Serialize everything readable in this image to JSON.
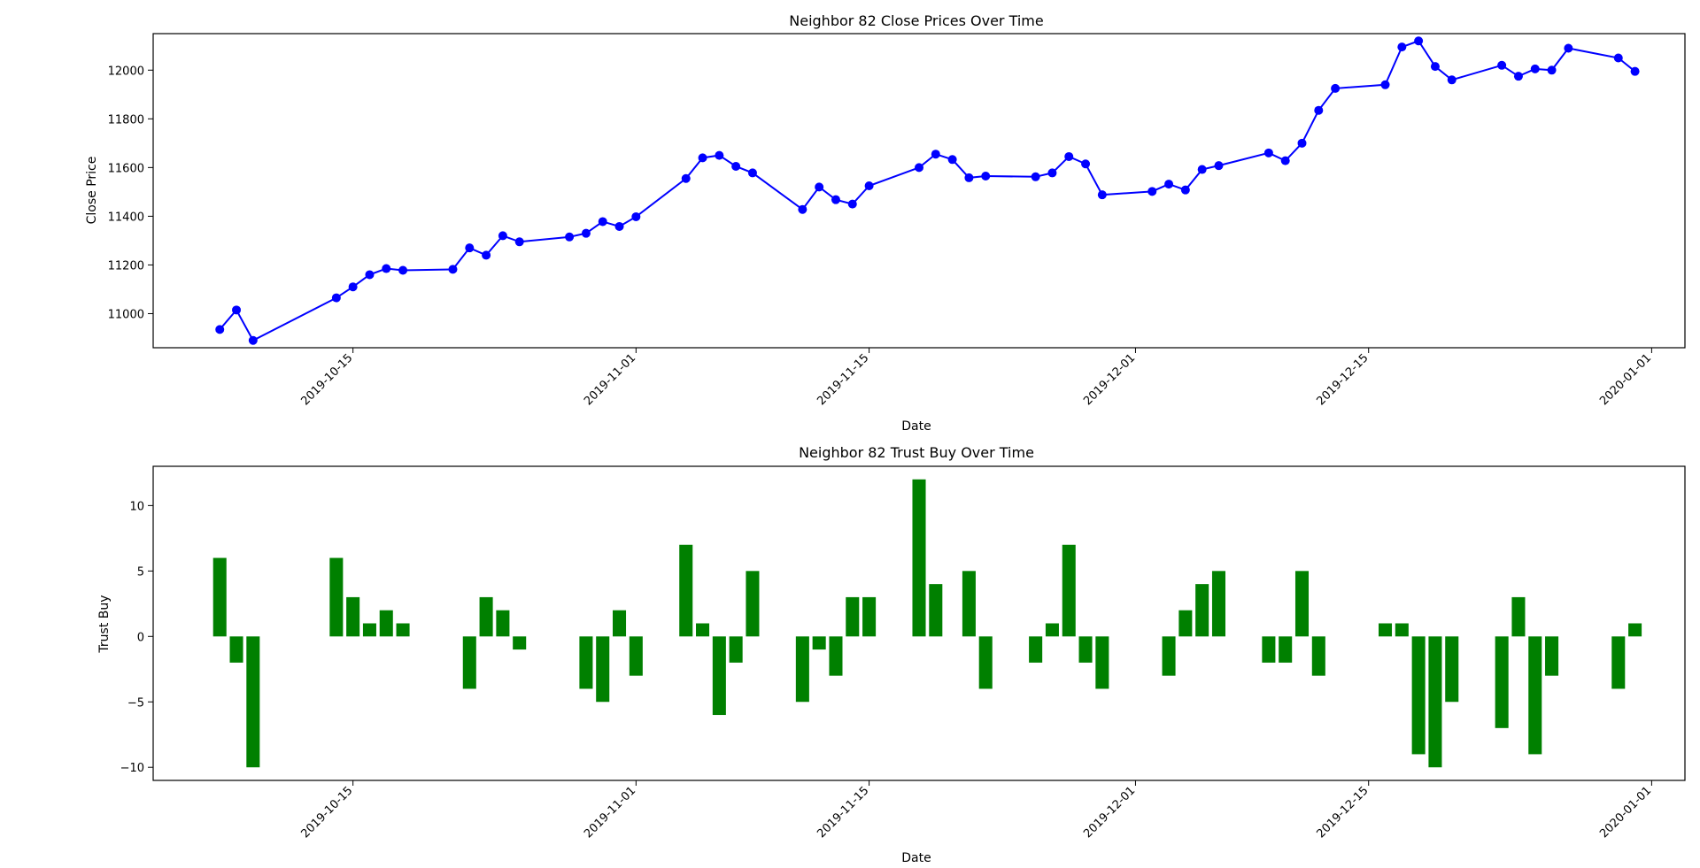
{
  "chart_data": [
    {
      "type": "line",
      "title": "Neighbor 82 Close Prices Over Time",
      "xlabel": "Date",
      "ylabel": "Close Price",
      "xlim": [
        "2019-10-03",
        "2020-01-03"
      ],
      "ylim": [
        10860,
        12150
      ],
      "xticks": [
        "2019-10-15",
        "2019-11-01",
        "2019-11-15",
        "2019-12-01",
        "2019-12-15",
        "2020-01-01"
      ],
      "yticks": [
        11000,
        11200,
        11400,
        11600,
        11800,
        12000
      ],
      "grid": false,
      "color": "#0000ff",
      "marker": "circle",
      "series": [
        {
          "x": [
            "2019-10-07",
            "2019-10-08",
            "2019-10-09",
            "2019-10-14",
            "2019-10-15",
            "2019-10-16",
            "2019-10-17",
            "2019-10-18",
            "2019-10-21",
            "2019-10-22",
            "2019-10-23",
            "2019-10-24",
            "2019-10-25",
            "2019-10-28",
            "2019-10-29",
            "2019-10-30",
            "2019-10-31",
            "2019-11-01",
            "2019-11-04",
            "2019-11-05",
            "2019-11-06",
            "2019-11-07",
            "2019-11-08",
            "2019-11-11",
            "2019-11-12",
            "2019-11-13",
            "2019-11-14",
            "2019-11-15",
            "2019-11-18",
            "2019-11-19",
            "2019-11-20",
            "2019-11-21",
            "2019-11-22",
            "2019-11-25",
            "2019-11-26",
            "2019-11-27",
            "2019-11-28",
            "2019-11-29",
            "2019-12-02",
            "2019-12-03",
            "2019-12-04",
            "2019-12-05",
            "2019-12-06",
            "2019-12-09",
            "2019-12-10",
            "2019-12-11",
            "2019-12-12",
            "2019-12-13",
            "2019-12-16",
            "2019-12-17",
            "2019-12-18",
            "2019-12-19",
            "2019-12-20",
            "2019-12-23",
            "2019-12-24",
            "2019-12-25",
            "2019-12-26",
            "2019-12-27",
            "2019-12-30",
            "2019-12-31"
          ],
          "y": [
            10935,
            11015,
            10890,
            11065,
            11110,
            11160,
            11185,
            11178,
            11182,
            11270,
            11240,
            11320,
            11295,
            11315,
            11330,
            11378,
            11358,
            11398,
            11555,
            11640,
            11650,
            11605,
            11578,
            11428,
            11520,
            11468,
            11450,
            11525,
            11600,
            11655,
            11633,
            11558,
            11565,
            11562,
            11578,
            11645,
            11615,
            11488,
            11502,
            11532,
            11508,
            11592,
            11608,
            11660,
            11628,
            11700,
            11835,
            11925,
            11940,
            12095,
            12120,
            12015,
            11960,
            12020,
            11975,
            12005,
            12000,
            12090,
            12050,
            11995
          ]
        }
      ]
    },
    {
      "type": "bar",
      "title": "Neighbor 82 Trust Buy Over Time",
      "xlabel": "Date",
      "ylabel": "Trust Buy",
      "xlim": [
        "2019-10-03",
        "2020-01-03"
      ],
      "ylim": [
        -11,
        13
      ],
      "xticks": [
        "2019-10-15",
        "2019-11-01",
        "2019-11-15",
        "2019-12-01",
        "2019-12-15",
        "2020-01-01"
      ],
      "yticks": [
        -10,
        -5,
        0,
        5,
        10
      ],
      "grid": false,
      "color": "#008000",
      "series": [
        {
          "x": [
            "2019-10-07",
            "2019-10-08",
            "2019-10-09",
            "2019-10-14",
            "2019-10-15",
            "2019-10-16",
            "2019-10-17",
            "2019-10-18",
            "2019-10-21",
            "2019-10-22",
            "2019-10-23",
            "2019-10-24",
            "2019-10-25",
            "2019-10-28",
            "2019-10-29",
            "2019-10-30",
            "2019-10-31",
            "2019-11-01",
            "2019-11-04",
            "2019-11-05",
            "2019-11-06",
            "2019-11-07",
            "2019-11-08",
            "2019-11-11",
            "2019-11-12",
            "2019-11-13",
            "2019-11-14",
            "2019-11-15",
            "2019-11-18",
            "2019-11-19",
            "2019-11-20",
            "2019-11-21",
            "2019-11-22",
            "2019-11-25",
            "2019-11-26",
            "2019-11-27",
            "2019-11-28",
            "2019-11-29",
            "2019-12-02",
            "2019-12-03",
            "2019-12-04",
            "2019-12-05",
            "2019-12-06",
            "2019-12-09",
            "2019-12-10",
            "2019-12-11",
            "2019-12-12",
            "2019-12-13",
            "2019-12-16",
            "2019-12-17",
            "2019-12-18",
            "2019-12-19",
            "2019-12-20",
            "2019-12-23",
            "2019-12-24",
            "2019-12-25",
            "2019-12-26",
            "2019-12-27",
            "2019-12-30",
            "2019-12-31"
          ],
          "y": [
            6,
            -2,
            -10,
            6,
            3,
            1,
            2,
            1,
            0,
            -4,
            3,
            2,
            -1,
            0,
            -4,
            -5,
            2,
            -3,
            7,
            1,
            -6,
            -2,
            5,
            -5,
            -1,
            -3,
            3,
            3,
            12,
            4,
            0,
            5,
            -4,
            -2,
            1,
            7,
            -2,
            -4,
            0,
            -3,
            2,
            4,
            5,
            -2,
            -2,
            5,
            -3,
            0,
            1,
            1,
            -9,
            -10,
            -5,
            -7,
            3,
            -9,
            -3,
            0,
            -4,
            1
          ]
        }
      ]
    }
  ]
}
